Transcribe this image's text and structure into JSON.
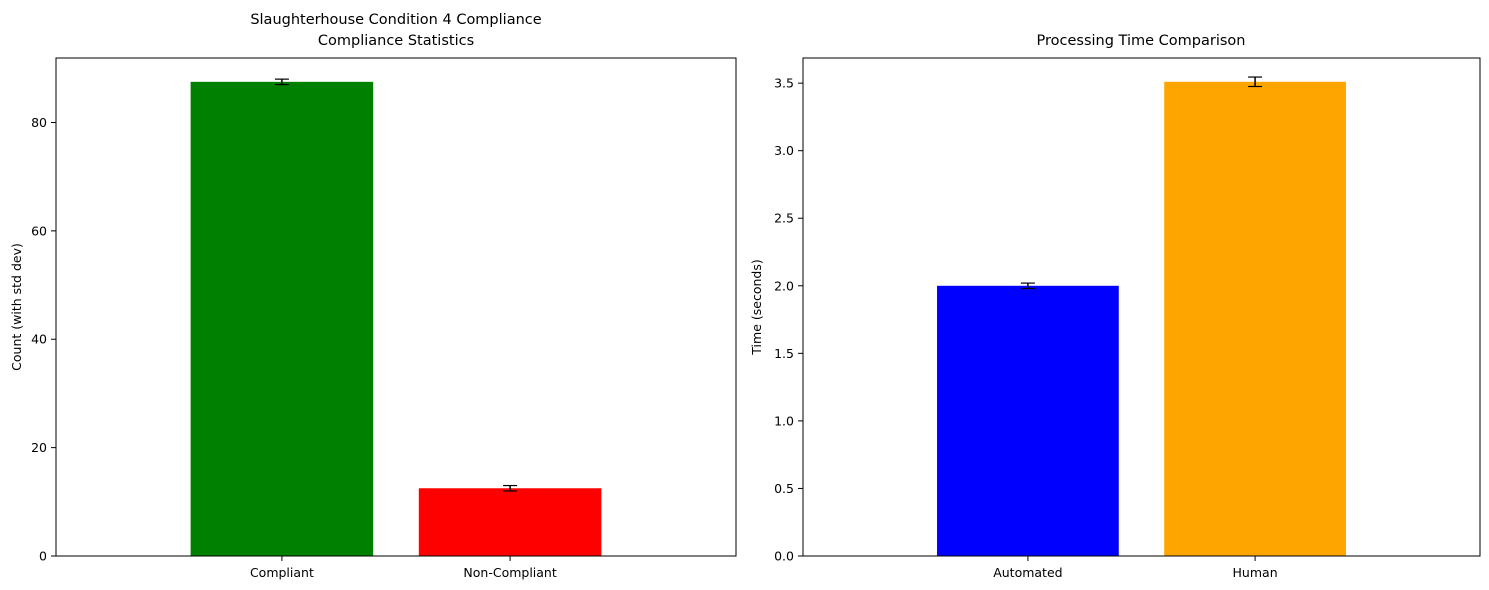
{
  "chart_data": [
    {
      "type": "bar",
      "title": "Slaughterhouse Condition 4 Compliance",
      "subtitle": "Compliance Statistics",
      "xlabel": "",
      "ylabel": "Count (with std dev)",
      "categories": [
        "Compliant",
        "Non-Compliant"
      ],
      "values": [
        87.5,
        12.5
      ],
      "errors": [
        0.5,
        0.5
      ],
      "colors": [
        "#008000",
        "#ff0000"
      ],
      "ylim": [
        0,
        91.9
      ],
      "yticks": [
        0,
        20,
        40,
        60,
        80
      ],
      "grid": false
    },
    {
      "type": "bar",
      "title": "Processing Time Comparison",
      "xlabel": "",
      "ylabel": "Time (seconds)",
      "categories": [
        "Automated",
        "Human"
      ],
      "values": [
        2.0,
        3.51
      ],
      "errors": [
        0.02,
        0.035
      ],
      "colors": [
        "#0000ff",
        "#ffa500"
      ],
      "ylim": [
        0,
        3.686
      ],
      "yticks": [
        0.0,
        0.5,
        1.0,
        1.5,
        2.0,
        2.5,
        3.0,
        3.5
      ],
      "ytick_format": "0.0",
      "grid": false
    }
  ]
}
